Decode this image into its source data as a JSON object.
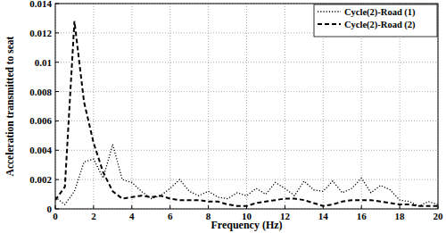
{
  "chart_data": {
    "type": "line",
    "x_label": "Frequency (Hz)",
    "y_label": "Acceleration transmitted to seat",
    "x": [
      0,
      0.5,
      1,
      1.5,
      2,
      2.5,
      3,
      3.5,
      4,
      4.5,
      5,
      5.5,
      6,
      6.5,
      7,
      7.5,
      8,
      8.5,
      9,
      9.5,
      10,
      10.5,
      11,
      11.5,
      12,
      12.5,
      13,
      13.5,
      14,
      14.5,
      15,
      15.5,
      16,
      16.5,
      17,
      17.5,
      18,
      18.5,
      19,
      19.5,
      20
    ],
    "series": [
      {
        "name": "Cycle(2)-Road (1)",
        "color": "#000000",
        "line_style": "dotted",
        "values": [
          0.0008,
          0.0003,
          0.0012,
          0.0032,
          0.0034,
          0.0021,
          0.0044,
          0.002,
          0.0018,
          0.0012,
          0.0007,
          0.0009,
          0.0014,
          0.002,
          0.0012,
          0.0009,
          0.0012,
          0.0008,
          0.0007,
          0.0011,
          0.0009,
          0.0014,
          0.001,
          0.0018,
          0.0014,
          0.0009,
          0.0019,
          0.0013,
          0.0012,
          0.0019,
          0.0011,
          0.0014,
          0.0021,
          0.0011,
          0.0016,
          0.0013,
          0.0006,
          0.0005,
          0.0002,
          0.0005,
          0.0003
        ]
      },
      {
        "name": "Cycle(2)-Road (2)",
        "color": "#000000",
        "line_style": "dashed",
        "values": [
          0.0006,
          0.0015,
          0.0128,
          0.0073,
          0.0045,
          0.0025,
          0.0012,
          0.0007,
          0.0008,
          0.0009,
          0.0008,
          0.0009,
          0.0007,
          0.0006,
          0.0006,
          0.0006,
          0.0005,
          0.0005,
          0.0003,
          0.0002,
          0.0002,
          0.0004,
          0.0005,
          0.0006,
          0.0007,
          0.0007,
          0.0006,
          0.0004,
          0.0002,
          0.0003,
          0.0005,
          0.0006,
          0.0006,
          0.0006,
          0.0005,
          0.0004,
          0.0003,
          0.0003,
          0.0002,
          0.0002,
          0.0002
        ]
      }
    ],
    "xlim": [
      0,
      20
    ],
    "ylim": [
      0,
      0.014
    ],
    "xticks": [
      0,
      2,
      4,
      6,
      8,
      10,
      12,
      14,
      16,
      18,
      20
    ],
    "yticks": [
      0,
      0.002,
      0.004,
      0.006,
      0.008,
      0.01,
      0.012,
      0.014
    ],
    "grid": true,
    "legend": "upper right"
  }
}
